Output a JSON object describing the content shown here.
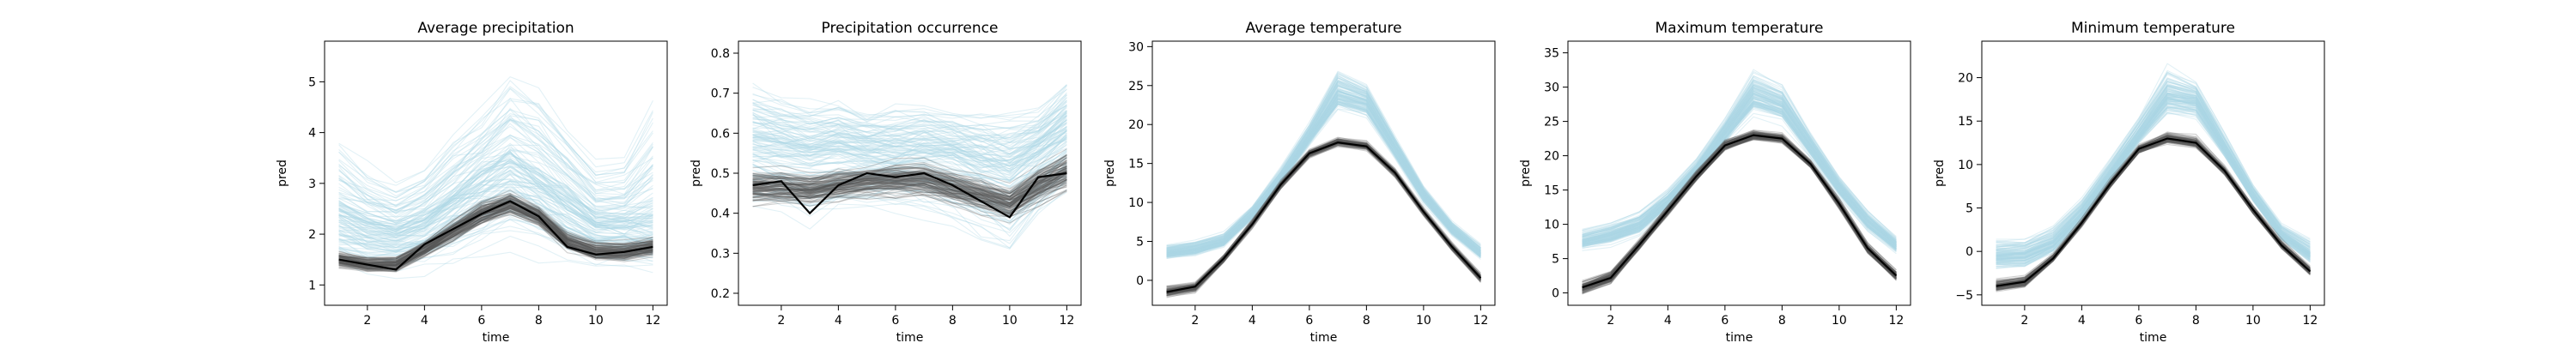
{
  "colors": {
    "ensemble_light": "#add8e6",
    "ensemble_dark": "#555555",
    "mean_line": "#000000",
    "axes": "#000000"
  },
  "chart_data": [
    {
      "type": "line",
      "title": "Average precipitation",
      "xlabel": "time",
      "ylabel": "pred",
      "xlim": [
        0.5,
        12.5
      ],
      "ylim": [
        0.6,
        5.8
      ],
      "xticks": [
        2,
        4,
        6,
        8,
        10,
        12
      ],
      "yticks": [
        1,
        2,
        3,
        4,
        5
      ],
      "grid": false,
      "legend": "none",
      "x": [
        1,
        2,
        3,
        4,
        5,
        6,
        7,
        8,
        9,
        10,
        11,
        12
      ],
      "series": [
        {
          "role": "ensemble-light-envelope",
          "color": "#add8e6",
          "values_low": [
            1.1,
            1.0,
            1.0,
            1.1,
            1.2,
            1.3,
            1.4,
            1.3,
            1.2,
            1.1,
            1.1,
            1.0
          ],
          "values_mid": [
            2.3,
            2.1,
            2.0,
            2.2,
            2.6,
            3.0,
            3.3,
            3.0,
            2.6,
            2.2,
            2.2,
            2.2
          ],
          "values_high": [
            4.2,
            3.6,
            3.2,
            3.5,
            4.2,
            4.8,
            5.5,
            5.2,
            4.4,
            3.6,
            3.8,
            5.2
          ]
        },
        {
          "role": "ensemble-dark-envelope",
          "color": "#555555",
          "values_low": [
            1.3,
            1.2,
            1.2,
            1.5,
            1.8,
            2.1,
            2.3,
            2.1,
            1.6,
            1.4,
            1.4,
            1.5
          ],
          "values_high": [
            1.7,
            1.6,
            1.6,
            1.9,
            2.3,
            2.7,
            2.9,
            2.6,
            2.1,
            1.9,
            1.9,
            2.0
          ]
        },
        {
          "role": "mean",
          "color": "#000000",
          "values": [
            1.5,
            1.4,
            1.3,
            1.8,
            2.1,
            2.4,
            2.65,
            2.35,
            1.75,
            1.6,
            1.65,
            1.75
          ]
        }
      ]
    },
    {
      "type": "line",
      "title": "Precipitation occurrence",
      "xlabel": "time",
      "ylabel": "pred",
      "xlim": [
        0.5,
        12.5
      ],
      "ylim": [
        0.17,
        0.83
      ],
      "xticks": [
        2,
        4,
        6,
        8,
        10,
        12
      ],
      "yticks": [
        0.2,
        0.3,
        0.4,
        0.5,
        0.6,
        0.7,
        0.8
      ],
      "grid": false,
      "legend": "none",
      "x": [
        1,
        2,
        3,
        4,
        5,
        6,
        7,
        8,
        9,
        10,
        11,
        12
      ],
      "series": [
        {
          "role": "ensemble-light-envelope",
          "color": "#add8e6",
          "values_low": [
            0.35,
            0.33,
            0.3,
            0.33,
            0.35,
            0.36,
            0.33,
            0.3,
            0.25,
            0.2,
            0.3,
            0.38
          ],
          "values_mid": [
            0.57,
            0.56,
            0.55,
            0.56,
            0.55,
            0.54,
            0.55,
            0.54,
            0.52,
            0.5,
            0.55,
            0.6
          ],
          "values_high": [
            0.78,
            0.74,
            0.72,
            0.72,
            0.7,
            0.72,
            0.72,
            0.7,
            0.7,
            0.7,
            0.7,
            0.78
          ]
        },
        {
          "role": "ensemble-dark-envelope",
          "color": "#555555",
          "values_low": [
            0.41,
            0.41,
            0.41,
            0.42,
            0.43,
            0.43,
            0.43,
            0.41,
            0.39,
            0.37,
            0.41,
            0.44
          ],
          "values_high": [
            0.52,
            0.52,
            0.51,
            0.52,
            0.53,
            0.54,
            0.54,
            0.52,
            0.5,
            0.48,
            0.53,
            0.57
          ]
        },
        {
          "role": "mean",
          "color": "#000000",
          "values": [
            0.47,
            0.48,
            0.4,
            0.47,
            0.5,
            0.49,
            0.5,
            0.47,
            0.43,
            0.39,
            0.49,
            0.5
          ]
        }
      ]
    },
    {
      "type": "line",
      "title": "Average temperature",
      "xlabel": "time",
      "ylabel": "pred",
      "xlim": [
        0.5,
        12.5
      ],
      "ylim": [
        -3.2,
        30.7
      ],
      "xticks": [
        2,
        4,
        6,
        8,
        10,
        12
      ],
      "yticks": [
        0,
        5,
        10,
        15,
        20,
        25,
        30
      ],
      "grid": false,
      "legend": "none",
      "x": [
        1,
        2,
        3,
        4,
        5,
        6,
        7,
        8,
        9,
        10,
        11,
        12
      ],
      "series": [
        {
          "role": "ensemble-light-envelope",
          "color": "#add8e6",
          "values_low": [
            2.5,
            2.8,
            4.0,
            7.5,
            12.0,
            17.0,
            21.0,
            20.0,
            15.0,
            9.5,
            5.5,
            2.5
          ],
          "values_mid": [
            3.5,
            4.0,
            5.0,
            8.5,
            13.0,
            18.5,
            24.0,
            23.0,
            17.0,
            11.0,
            6.5,
            3.5
          ],
          "values_high": [
            5.0,
            5.5,
            6.5,
            10.0,
            15.0,
            21.0,
            28.5,
            26.0,
            19.0,
            12.5,
            8.0,
            5.0
          ]
        },
        {
          "role": "ensemble-dark-envelope",
          "color": "#555555",
          "values_low": [
            -2.5,
            -1.8,
            2.0,
            6.5,
            11.5,
            15.5,
            17.0,
            16.5,
            13.0,
            8.0,
            3.5,
            -0.5
          ],
          "values_high": [
            -0.5,
            0.0,
            3.5,
            8.0,
            13.0,
            17.0,
            18.5,
            18.0,
            14.5,
            9.5,
            5.0,
            1.0
          ]
        },
        {
          "role": "mean",
          "color": "#000000",
          "values": [
            -1.5,
            -0.8,
            2.8,
            7.2,
            12.3,
            16.3,
            17.7,
            17.2,
            13.8,
            8.8,
            4.3,
            0.3
          ]
        }
      ]
    },
    {
      "type": "line",
      "title": "Maximum temperature",
      "xlabel": "time",
      "ylabel": "pred",
      "xlim": [
        0.5,
        12.5
      ],
      "ylim": [
        -1.8,
        36.7
      ],
      "xticks": [
        2,
        4,
        6,
        8,
        10,
        12
      ],
      "yticks": [
        0,
        5,
        10,
        15,
        20,
        25,
        30,
        35
      ],
      "grid": false,
      "legend": "none",
      "x": [
        1,
        2,
        3,
        4,
        5,
        6,
        7,
        8,
        9,
        10,
        11,
        12
      ],
      "series": [
        {
          "role": "ensemble-light-envelope",
          "color": "#add8e6",
          "values_low": [
            6.0,
            6.5,
            8.0,
            11.5,
            16.0,
            21.0,
            25.0,
            24.0,
            19.0,
            13.5,
            8.5,
            5.5
          ],
          "values_mid": [
            7.5,
            8.5,
            10.0,
            13.5,
            18.0,
            23.5,
            29.0,
            27.5,
            21.5,
            15.5,
            10.5,
            7.0
          ],
          "values_high": [
            10.0,
            11.0,
            12.5,
            15.5,
            20.0,
            26.0,
            34.0,
            31.5,
            24.0,
            17.5,
            12.5,
            8.5
          ]
        },
        {
          "role": "ensemble-dark-envelope",
          "color": "#555555",
          "values_low": [
            -0.5,
            1.0,
            6.0,
            11.0,
            16.0,
            20.5,
            22.0,
            21.5,
            18.0,
            12.0,
            5.5,
            1.5
          ],
          "values_high": [
            2.0,
            3.5,
            8.0,
            13.0,
            18.0,
            22.5,
            24.0,
            23.5,
            19.5,
            14.0,
            7.5,
            3.5
          ]
        },
        {
          "role": "mean",
          "color": "#000000",
          "values": [
            0.8,
            2.2,
            7.0,
            12.0,
            17.0,
            21.5,
            23.0,
            22.5,
            18.8,
            13.0,
            6.5,
            2.5
          ]
        }
      ]
    },
    {
      "type": "line",
      "title": "Minimum temperature",
      "xlabel": "time",
      "ylabel": "pred",
      "xlim": [
        0.5,
        12.5
      ],
      "ylim": [
        -6.2,
        24.2
      ],
      "xticks": [
        2,
        4,
        6,
        8,
        10,
        12
      ],
      "yticks": [
        -5,
        0,
        5,
        10,
        15,
        20
      ],
      "grid": false,
      "legend": "none",
      "x": [
        1,
        2,
        3,
        4,
        5,
        6,
        7,
        8,
        9,
        10,
        11,
        12
      ],
      "series": [
        {
          "role": "ensemble-light-envelope",
          "color": "#add8e6",
          "values_low": [
            -2.5,
            -2.5,
            -0.5,
            3.0,
            7.5,
            12.0,
            15.0,
            14.5,
            10.5,
            5.5,
            1.0,
            -1.5
          ],
          "values_mid": [
            -0.5,
            -0.3,
            1.0,
            4.5,
            9.0,
            13.5,
            18.0,
            17.5,
            12.0,
            6.5,
            2.0,
            -0.3
          ],
          "values_high": [
            2.0,
            2.0,
            3.5,
            6.5,
            11.0,
            16.0,
            22.0,
            20.0,
            14.0,
            8.0,
            3.5,
            2.0
          ]
        },
        {
          "role": "ensemble-dark-envelope",
          "color": "#555555",
          "values_low": [
            -5.0,
            -4.5,
            -1.5,
            2.5,
            7.0,
            11.0,
            12.0,
            11.5,
            8.5,
            4.0,
            0.0,
            -3.0
          ],
          "values_high": [
            -3.0,
            -2.5,
            0.0,
            4.0,
            8.5,
            12.5,
            14.0,
            13.5,
            10.0,
            5.5,
            1.5,
            -1.5
          ]
        },
        {
          "role": "mean",
          "color": "#000000",
          "values": [
            -4.0,
            -3.5,
            -0.8,
            3.3,
            7.8,
            11.8,
            13.0,
            12.5,
            9.3,
            4.8,
            0.7,
            -2.3
          ]
        }
      ]
    }
  ]
}
